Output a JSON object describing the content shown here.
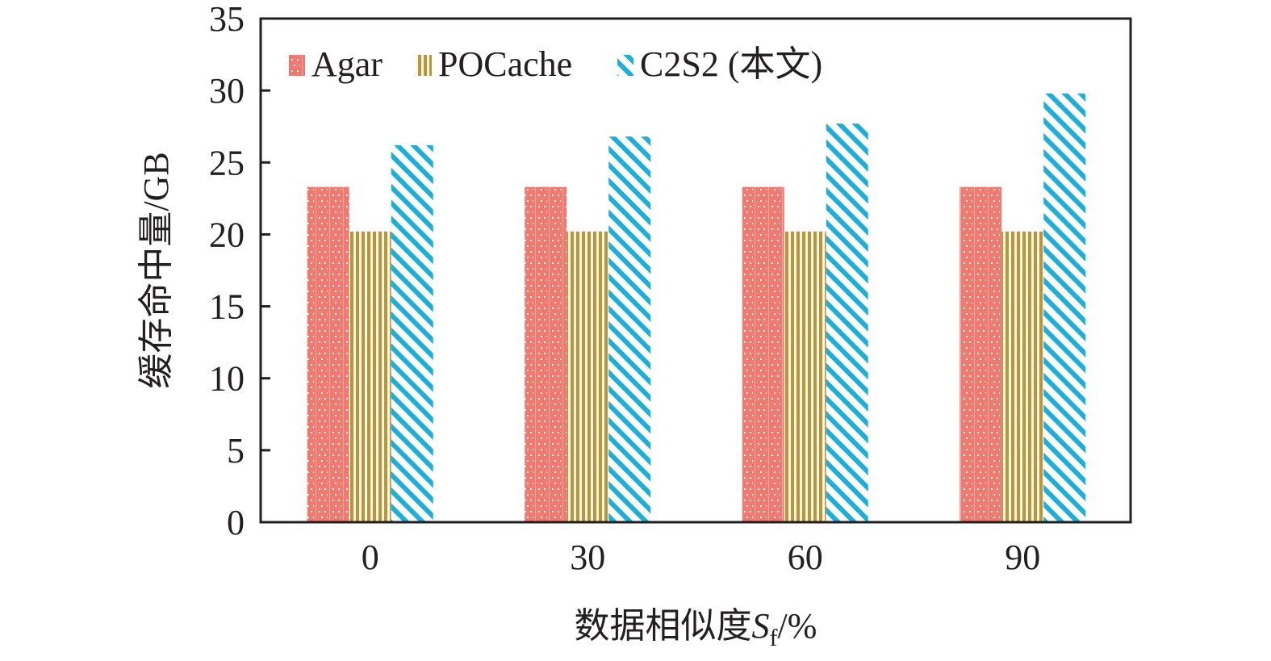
{
  "chart_data": {
    "type": "bar",
    "title": "",
    "xlabel": "数据相似度S_f/%",
    "xlabel_parts": {
      "prefix": "数据相似度",
      "var": "S",
      "sub": "f",
      "suffix": "/%"
    },
    "ylabel": "缓存命中量/GB",
    "ylim": [
      0,
      35
    ],
    "yticks": [
      0,
      5,
      10,
      15,
      20,
      25,
      30,
      35
    ],
    "categories": [
      "0",
      "30",
      "60",
      "90"
    ],
    "grid": false,
    "legend_position": "top-left",
    "series": [
      {
        "name": "Agar",
        "color": "#f07a70",
        "pattern": "dots",
        "values": [
          23.3,
          23.3,
          23.3,
          23.3
        ]
      },
      {
        "name": "POCache",
        "color": "#b8963a",
        "pattern": "vertical-lines",
        "values": [
          20.2,
          20.2,
          20.2,
          20.2
        ]
      },
      {
        "name": "C2S2 (本文)",
        "color": "#1eaed8",
        "pattern": "diagonal-lines",
        "values": [
          26.2,
          26.8,
          27.7,
          29.8
        ]
      }
    ]
  }
}
